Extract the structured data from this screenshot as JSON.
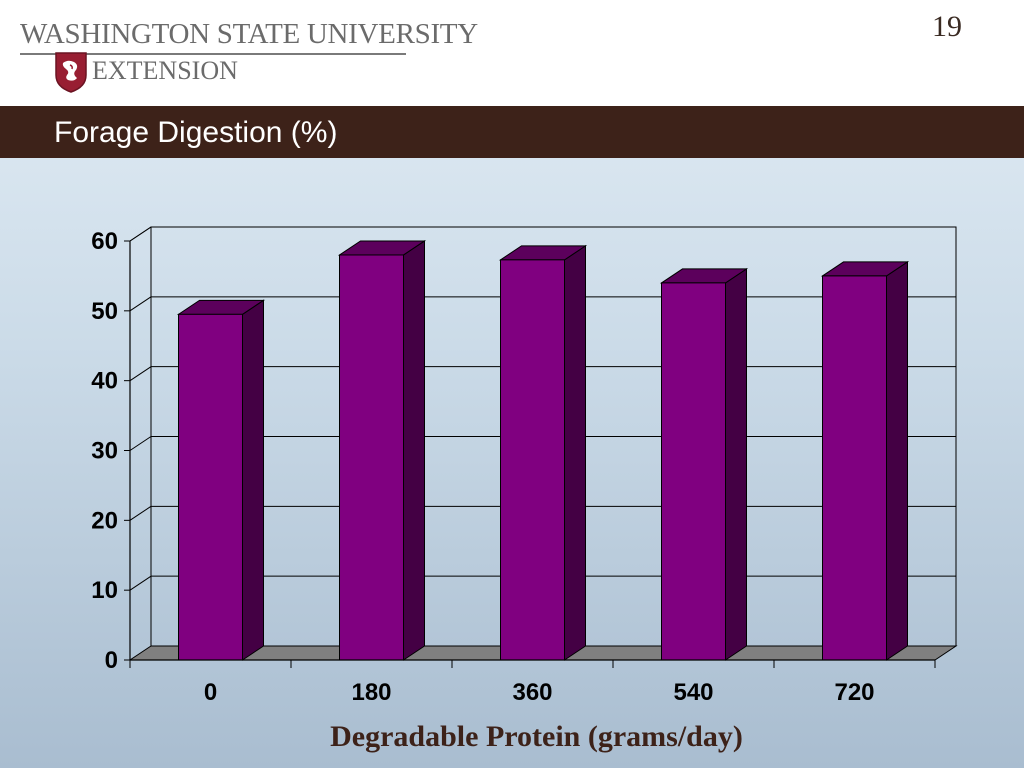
{
  "header": {
    "university_name": "WASHINGTON STATE UNIVERSITY",
    "extension_label": "EXTENSION",
    "slide_number": "19"
  },
  "slide": {
    "title": "Forage Digestion (%)"
  },
  "colors": {
    "title_bar": "#3d2219",
    "bar_front": "#800080",
    "bar_side": "#440044",
    "bar_top": "#5c005c",
    "floor": "#808080",
    "brand_crimson": "#981e32"
  },
  "chart_data": {
    "type": "bar",
    "style": "3d-column",
    "categories": [
      "0",
      "180",
      "360",
      "540",
      "720"
    ],
    "values": [
      49.5,
      58,
      57.3,
      54,
      55
    ],
    "title": "",
    "xlabel": "Degradable Protein (grams/day)",
    "ylabel": "",
    "ylim": [
      0,
      60
    ],
    "yticks": [
      "0",
      "10",
      "20",
      "30",
      "40",
      "50",
      "60"
    ],
    "grid": true,
    "legend": "none"
  }
}
